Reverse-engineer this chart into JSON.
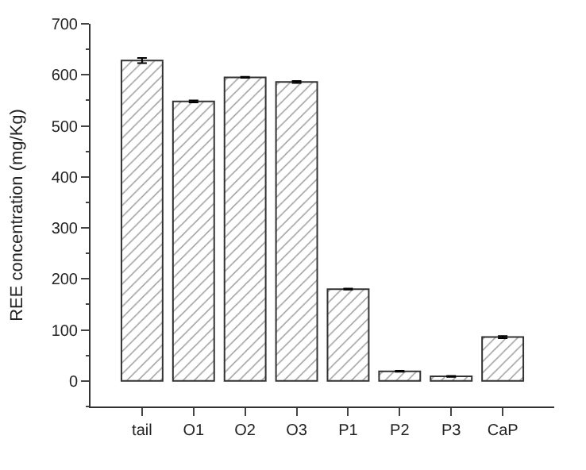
{
  "chart_data": {
    "type": "bar",
    "ylabel": "REE concentration (mg/Kg)",
    "categories": [
      "tail",
      "O1",
      "O2",
      "O3",
      "P1",
      "P2",
      "P3",
      "CaP"
    ],
    "values": [
      628,
      548,
      595,
      586,
      180,
      19,
      9,
      86
    ],
    "errors": [
      5,
      2,
      1,
      2,
      1,
      1,
      1,
      2
    ],
    "color": "#333333",
    "ylim": [
      -50,
      700
    ],
    "yticks": [
      0,
      100,
      200,
      300,
      400,
      500,
      600,
      700
    ]
  }
}
